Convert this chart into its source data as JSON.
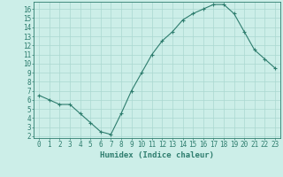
{
  "xlabel": "Humidex (Indice chaleur)",
  "x": [
    0,
    1,
    2,
    3,
    4,
    5,
    6,
    7,
    8,
    9,
    10,
    11,
    12,
    13,
    14,
    15,
    16,
    17,
    18,
    19,
    20,
    21,
    22,
    23
  ],
  "y": [
    6.5,
    6.0,
    5.5,
    5.5,
    4.5,
    3.5,
    2.5,
    2.2,
    4.5,
    7.0,
    9.0,
    11.0,
    12.5,
    13.5,
    14.8,
    15.5,
    16.0,
    16.5,
    16.5,
    15.5,
    13.5,
    11.5,
    10.5,
    9.5
  ],
  "line_color": "#2e7d6e",
  "marker": "+",
  "bg_color": "#cceee8",
  "grid_color": "#aad8d0",
  "xlim": [
    -0.5,
    23.5
  ],
  "ylim": [
    1.8,
    16.8
  ],
  "ytick_values": [
    2,
    3,
    4,
    5,
    6,
    7,
    8,
    9,
    10,
    11,
    12,
    13,
    14,
    15,
    16
  ],
  "tick_fontsize": 5.5,
  "label_fontsize": 6.5
}
